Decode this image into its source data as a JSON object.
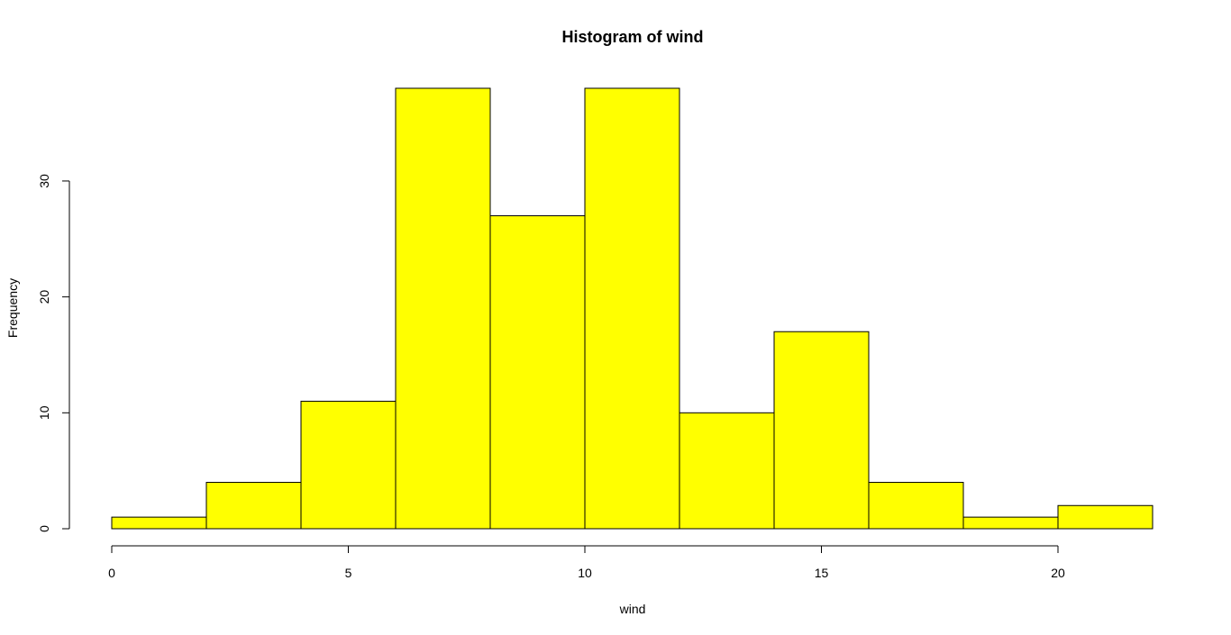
{
  "chart_data": {
    "type": "bar",
    "title": "Histogram of wind",
    "xlabel": "wind",
    "ylabel": "Frequency",
    "bins": [
      {
        "from": 0,
        "to": 2,
        "count": 1
      },
      {
        "from": 2,
        "to": 4,
        "count": 4
      },
      {
        "from": 4,
        "to": 6,
        "count": 11
      },
      {
        "from": 6,
        "to": 8,
        "count": 38
      },
      {
        "from": 8,
        "to": 10,
        "count": 27
      },
      {
        "from": 10,
        "to": 12,
        "count": 38
      },
      {
        "from": 12,
        "to": 14,
        "count": 10
      },
      {
        "from": 14,
        "to": 16,
        "count": 17
      },
      {
        "from": 16,
        "to": 18,
        "count": 4
      },
      {
        "from": 18,
        "to": 20,
        "count": 1
      },
      {
        "from": 20,
        "to": 22,
        "count": 2
      }
    ],
    "xlim": [
      0,
      22
    ],
    "ylim": [
      0,
      38
    ],
    "x_ticks": [
      0,
      5,
      10,
      15,
      20
    ],
    "y_ticks": [
      0,
      10,
      20,
      30
    ],
    "grid": false,
    "bar_color": "#ffff00",
    "bar_edge_color": "#000000"
  }
}
